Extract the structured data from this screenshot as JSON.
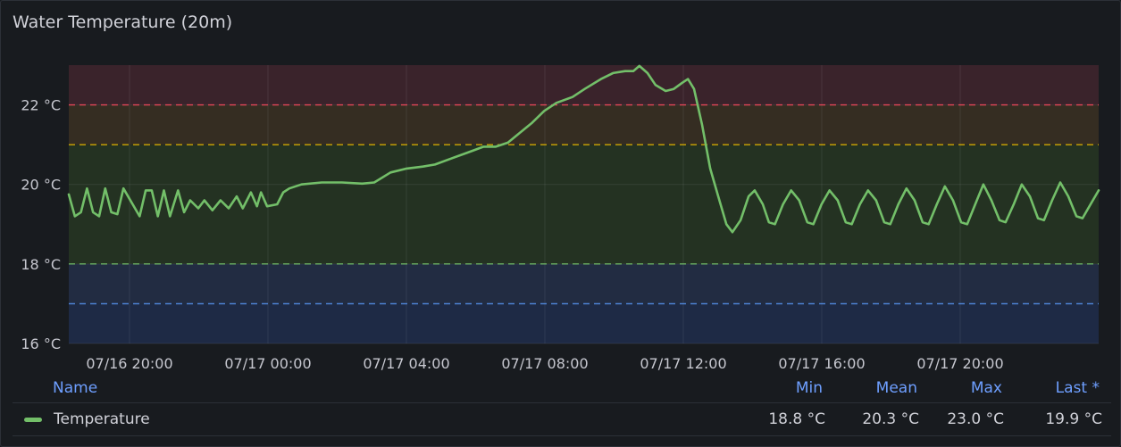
{
  "panel": {
    "title": "Water Temperature (20m)"
  },
  "chart_data": {
    "type": "line",
    "title": "Water Temperature (20m)",
    "x_axis": {
      "type": "time",
      "ticks": [
        "07/16 20:00",
        "07/17 00:00",
        "07/17 04:00",
        "07/17 08:00",
        "07/17 12:00",
        "07/17 16:00",
        "07/17 20:00"
      ]
    },
    "y_axis": {
      "unit": "°C",
      "min": 16,
      "max": 23,
      "ticks": [
        "16 °C",
        "18 °C",
        "20 °C",
        "22 °C"
      ]
    },
    "thresholds": [
      {
        "from": 16,
        "to": 17,
        "color": "#1e2a45",
        "line": "#5794f2"
      },
      {
        "from": 17,
        "to": 18,
        "color": "#222c42",
        "line": "#73bf69"
      },
      {
        "from": 18,
        "to": 21,
        "color": "#243222",
        "line": "#e0b400"
      },
      {
        "from": 21,
        "to": 22,
        "color": "#352d22",
        "line": "#f2495c"
      },
      {
        "from": 22,
        "to": 23,
        "color": "#3a232b",
        "line": null
      }
    ],
    "threshold_lines": [
      {
        "value": 17,
        "color": "#5794f2"
      },
      {
        "value": 18,
        "color": "#73bf69"
      },
      {
        "value": 21,
        "color": "#e0b400"
      },
      {
        "value": 22,
        "color": "#f2495c"
      }
    ],
    "series": [
      {
        "name": "Temperature",
        "color": "#73bf69",
        "points": [
          [
            -1.75,
            19.75
          ],
          [
            -1.6,
            19.2
          ],
          [
            -1.45,
            19.3
          ],
          [
            -1.3,
            19.9
          ],
          [
            -1.15,
            19.3
          ],
          [
            -1.0,
            19.2
          ],
          [
            -0.85,
            19.9
          ],
          [
            -0.7,
            19.3
          ],
          [
            -0.55,
            19.25
          ],
          [
            -0.4,
            19.9
          ],
          [
            0.0,
            19.2
          ],
          [
            0.15,
            19.85
          ],
          [
            0.3,
            19.85
          ],
          [
            0.45,
            19.2
          ],
          [
            0.6,
            19.85
          ],
          [
            0.75,
            19.2
          ],
          [
            0.95,
            19.85
          ],
          [
            1.1,
            19.3
          ],
          [
            1.25,
            19.6
          ],
          [
            1.45,
            19.4
          ],
          [
            1.6,
            19.6
          ],
          [
            1.8,
            19.35
          ],
          [
            2.0,
            19.6
          ],
          [
            2.2,
            19.4
          ],
          [
            2.4,
            19.7
          ],
          [
            2.55,
            19.4
          ],
          [
            2.75,
            19.8
          ],
          [
            2.9,
            19.45
          ],
          [
            3.0,
            19.8
          ],
          [
            3.15,
            19.45
          ],
          [
            3.4,
            19.5
          ],
          [
            3.55,
            19.8
          ],
          [
            3.7,
            19.9
          ],
          [
            4.0,
            20.0
          ],
          [
            4.5,
            20.05
          ],
          [
            5.0,
            20.05
          ],
          [
            5.5,
            20.02
          ],
          [
            5.8,
            20.05
          ],
          [
            6.2,
            20.3
          ],
          [
            6.6,
            20.4
          ],
          [
            7.0,
            20.45
          ],
          [
            7.3,
            20.5
          ],
          [
            7.7,
            20.65
          ],
          [
            8.1,
            20.8
          ],
          [
            8.5,
            20.95
          ],
          [
            8.8,
            20.95
          ],
          [
            9.1,
            21.05
          ],
          [
            9.4,
            21.3
          ],
          [
            9.7,
            21.55
          ],
          [
            10.0,
            21.85
          ],
          [
            10.3,
            22.05
          ],
          [
            10.7,
            22.2
          ],
          [
            11.0,
            22.4
          ],
          [
            11.4,
            22.65
          ],
          [
            11.7,
            22.8
          ],
          [
            12.0,
            22.85
          ],
          [
            12.2,
            22.85
          ],
          [
            12.35,
            22.98
          ],
          [
            12.55,
            22.8
          ],
          [
            12.75,
            22.5
          ],
          [
            13.0,
            22.35
          ],
          [
            13.2,
            22.4
          ],
          [
            13.4,
            22.55
          ],
          [
            13.55,
            22.65
          ],
          [
            13.7,
            22.4
          ],
          [
            13.9,
            21.5
          ],
          [
            14.1,
            20.4
          ],
          [
            14.3,
            19.7
          ],
          [
            14.5,
            19.0
          ],
          [
            14.65,
            18.8
          ],
          [
            14.85,
            19.1
          ],
          [
            15.05,
            19.7
          ],
          [
            15.2,
            19.85
          ],
          [
            15.4,
            19.5
          ],
          [
            15.55,
            19.05
          ],
          [
            15.7,
            19.0
          ],
          [
            15.9,
            19.5
          ],
          [
            16.1,
            19.85
          ],
          [
            16.3,
            19.6
          ],
          [
            16.5,
            19.05
          ],
          [
            16.65,
            19.0
          ],
          [
            16.85,
            19.5
          ],
          [
            17.05,
            19.85
          ],
          [
            17.25,
            19.6
          ],
          [
            17.45,
            19.05
          ],
          [
            17.6,
            19.0
          ],
          [
            17.8,
            19.5
          ],
          [
            18.0,
            19.85
          ],
          [
            18.2,
            19.6
          ],
          [
            18.4,
            19.05
          ],
          [
            18.55,
            19.0
          ],
          [
            18.75,
            19.5
          ],
          [
            18.95,
            19.9
          ],
          [
            19.15,
            19.6
          ],
          [
            19.35,
            19.05
          ],
          [
            19.5,
            19.0
          ],
          [
            19.7,
            19.5
          ],
          [
            19.9,
            19.95
          ],
          [
            20.1,
            19.6
          ],
          [
            20.3,
            19.05
          ],
          [
            20.45,
            19.0
          ],
          [
            20.65,
            19.5
          ],
          [
            20.85,
            20.0
          ],
          [
            21.05,
            19.6
          ],
          [
            21.25,
            19.1
          ],
          [
            21.4,
            19.05
          ],
          [
            21.6,
            19.5
          ],
          [
            21.8,
            20.0
          ],
          [
            22.0,
            19.7
          ],
          [
            22.2,
            19.15
          ],
          [
            22.35,
            19.1
          ],
          [
            22.55,
            19.6
          ],
          [
            22.75,
            20.05
          ],
          [
            22.95,
            19.7
          ],
          [
            23.15,
            19.2
          ],
          [
            23.3,
            19.15
          ],
          [
            23.5,
            19.5
          ],
          [
            23.7,
            19.85
          ]
        ]
      }
    ],
    "legend": {
      "placement": "bottom",
      "headers": {
        "name": "Name",
        "min": "Min",
        "mean": "Mean",
        "max": "Max",
        "last": "Last *"
      },
      "rows": [
        {
          "name": "Temperature",
          "min": "18.8 °C",
          "mean": "20.3 °C",
          "max": "23.0 °C",
          "last": "19.9 °C"
        }
      ]
    }
  }
}
